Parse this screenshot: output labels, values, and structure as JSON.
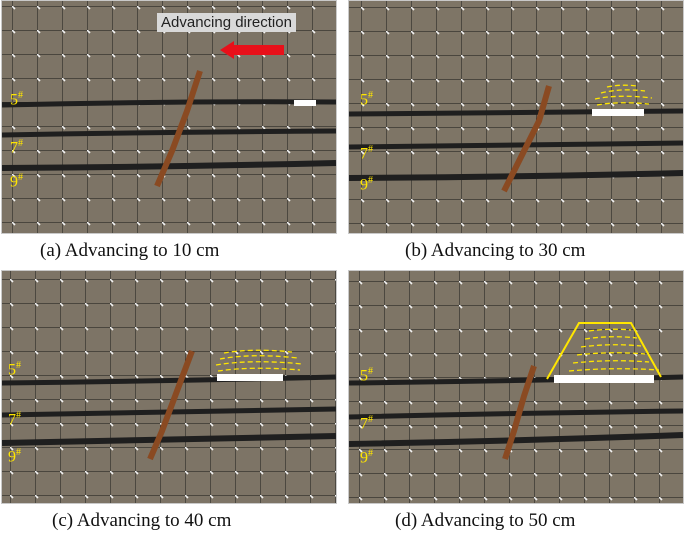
{
  "figure": {
    "panels": [
      {
        "id": "a",
        "caption": "(a)   Advancing to 10 cm"
      },
      {
        "id": "b",
        "caption": "(b)   Advancing to 30 cm"
      },
      {
        "id": "c",
        "caption": "(c)   Advancing to 40 cm"
      },
      {
        "id": "d",
        "caption": "(d)   Advancing to 50 cm"
      }
    ],
    "seam_labels": {
      "s5": "5",
      "s7": "7",
      "s9": "9",
      "mark": "#"
    },
    "annotation": {
      "direction_label": "Advancing direction",
      "arrow_color": "#e8101a"
    },
    "colors": {
      "rock": "#7d7466",
      "coal_seam": "#1f1f1f",
      "fault": "#8a4a22",
      "fracture_lines": "#ffe600",
      "goaf": "#ffffff"
    }
  }
}
